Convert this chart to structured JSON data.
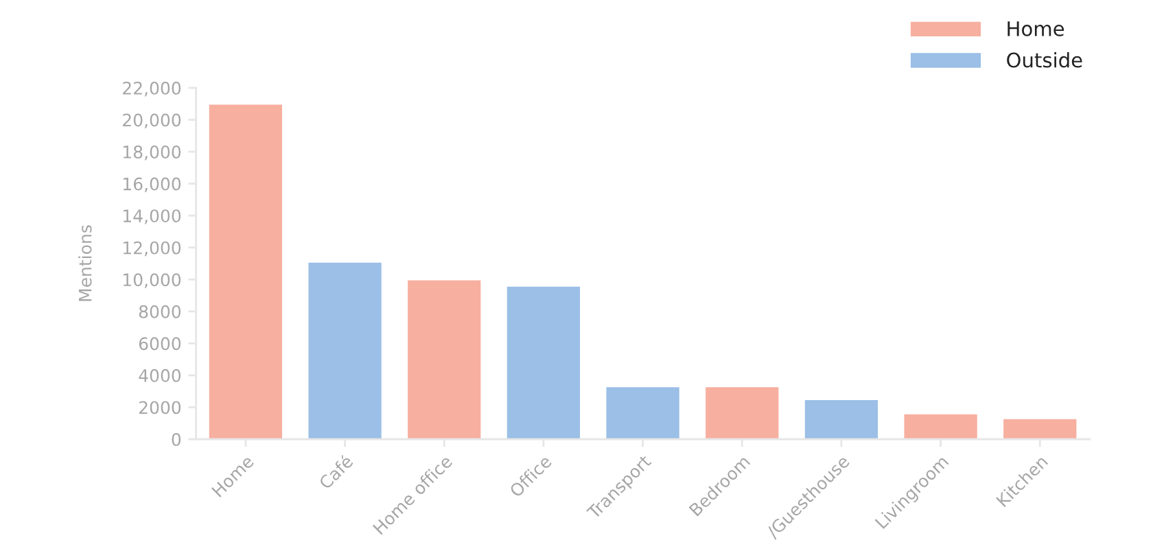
{
  "chart_data": {
    "type": "bar",
    "categories": [
      "Home",
      "Café",
      "Home office",
      "Office",
      "Transport",
      "Bedroom",
      "/Guesthouse",
      "Livingroom",
      "Kitchen"
    ],
    "series": [
      {
        "name": "Home",
        "color": "#f7afa0",
        "values": [
          21000,
          null,
          10000,
          null,
          null,
          3300,
          null,
          1600,
          1300
        ]
      },
      {
        "name": "Outside",
        "color": "#9bbfe6",
        "values": [
          null,
          11100,
          null,
          9600,
          3300,
          null,
          2500,
          null,
          null
        ]
      }
    ],
    "ylabel": "Mentions",
    "ylim": [
      0,
      22000
    ],
    "yticks": [
      0,
      2000,
      4000,
      6000,
      8000,
      {
        "value": 10000,
        "label": "10,000"
      },
      {
        "value": 12000,
        "label": "12,000"
      },
      {
        "value": 14000,
        "label": "14,000"
      },
      {
        "value": 16000,
        "label": "16,000"
      },
      {
        "value": 18000,
        "label": "18,000"
      },
      {
        "value": 20000,
        "label": "20,000"
      },
      {
        "value": 22000,
        "label": "22,000"
      }
    ],
    "legend": "top right"
  }
}
